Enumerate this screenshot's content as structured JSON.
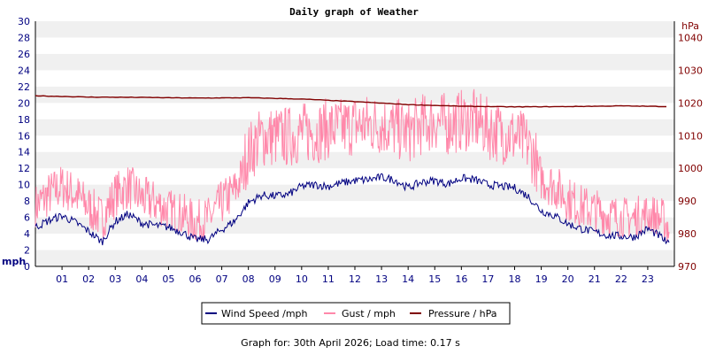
{
  "chart_data": {
    "type": "line",
    "title": "Daily graph of Weather",
    "footer": "Graph for: 30th April 2026; Load time: 0.17 s",
    "left_axis": {
      "unit": "mph",
      "range": [
        0,
        30
      ],
      "step": 2,
      "ticks": [
        "0",
        "2",
        "4",
        "6",
        "8",
        "10",
        "12",
        "14",
        "16",
        "18",
        "20",
        "22",
        "24",
        "26",
        "28",
        "30"
      ]
    },
    "right_axis": {
      "unit": "hPa",
      "range": [
        970,
        1045
      ],
      "ticks": [
        "970",
        "980",
        "990",
        "1000",
        "1010",
        "1020",
        "1030",
        "1040"
      ]
    },
    "x_axis": {
      "range": [
        0,
        24
      ],
      "ticks": [
        "01",
        "02",
        "03",
        "04",
        "05",
        "06",
        "07",
        "08",
        "09",
        "10",
        "11",
        "12",
        "13",
        "14",
        "15",
        "16",
        "17",
        "18",
        "19",
        "20",
        "21",
        "22",
        "23"
      ]
    },
    "grid": "alternating-horizontal-bands",
    "legend_position": "bottom-center",
    "colors": {
      "wind": "#000080",
      "gust": "#ff88aa",
      "pressure": "#800000",
      "band": "#f0f0f0"
    },
    "series": [
      {
        "name": "Wind Speed /mph",
        "axis": "left",
        "x": [
          0,
          0.5,
          1,
          1.5,
          2,
          2.5,
          3,
          3.5,
          4,
          4.5,
          5,
          5.5,
          6,
          6.5,
          7,
          7.5,
          8,
          8.5,
          9,
          9.5,
          10,
          10.5,
          11,
          11.5,
          12,
          12.5,
          13,
          13.5,
          14,
          14.5,
          15,
          15.5,
          16,
          16.5,
          17,
          17.5,
          18,
          18.5,
          19,
          19.5,
          20,
          20.5,
          21,
          21.5,
          22,
          22.5,
          23,
          23.5,
          23.8
        ],
        "values": [
          4.8,
          5.6,
          6.2,
          5.4,
          4.3,
          3.0,
          5.5,
          6.4,
          5.3,
          5.0,
          4.8,
          4.2,
          3.3,
          3.3,
          4.5,
          5.6,
          7.8,
          8.7,
          8.6,
          8.8,
          9.8,
          10.0,
          9.8,
          10.2,
          10.5,
          10.6,
          10.9,
          10.6,
          9.6,
          10.3,
          10.5,
          10.1,
          10.8,
          10.6,
          10.0,
          9.8,
          9.6,
          8.6,
          6.8,
          6.2,
          5.2,
          4.6,
          4.2,
          3.8,
          3.7,
          3.6,
          4.6,
          3.6,
          2.6
        ]
      },
      {
        "name": "Gust / mph",
        "axis": "left",
        "x": [
          0,
          0.5,
          1,
          1.5,
          2,
          2.5,
          3,
          3.5,
          4,
          4.5,
          5,
          5.5,
          6,
          6.5,
          7,
          7.5,
          8,
          8.5,
          9,
          9.5,
          10,
          10.5,
          11,
          11.5,
          12,
          12.5,
          13,
          13.5,
          14,
          14.5,
          15,
          15.5,
          16,
          16.5,
          17,
          17.5,
          18,
          18.5,
          19,
          19.5,
          20,
          20.5,
          21,
          21.5,
          22,
          22.5,
          23,
          23.5,
          23.8
        ],
        "values": [
          7.5,
          9.0,
          10.0,
          9.0,
          7.5,
          6.0,
          9.0,
          10.0,
          8.5,
          8.0,
          7.0,
          6.5,
          5.5,
          6.0,
          8.0,
          9.5,
          13.0,
          15.0,
          15.0,
          15.0,
          15.5,
          15.5,
          16.0,
          16.0,
          16.5,
          16.5,
          16.5,
          16.0,
          15.5,
          16.5,
          17.0,
          16.5,
          17.0,
          17.0,
          16.0,
          15.5,
          15.0,
          14.0,
          11.0,
          10.0,
          8.5,
          7.5,
          7.0,
          6.5,
          6.0,
          6.0,
          6.5,
          6.0,
          5.0
        ]
      },
      {
        "name": "Pressure / hPa",
        "axis": "right",
        "x": [
          0,
          2,
          4,
          6,
          8,
          10,
          12,
          14,
          16,
          17,
          18,
          20,
          22,
          23.8
        ],
        "values": [
          1022.2,
          1021.8,
          1021.7,
          1021.5,
          1021.6,
          1021.2,
          1020.4,
          1019.5,
          1019.0,
          1018.9,
          1018.8,
          1018.9,
          1019.1,
          1018.9
        ]
      }
    ]
  }
}
